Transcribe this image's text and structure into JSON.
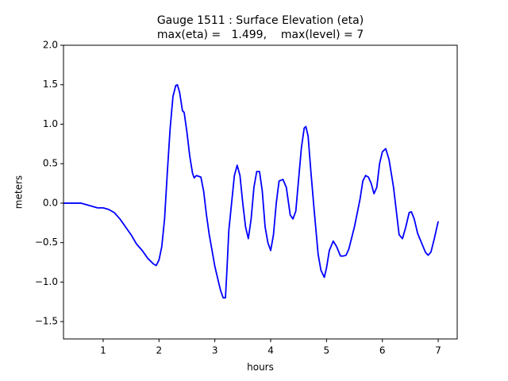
{
  "chart_data": {
    "type": "line",
    "title": "Gauge 1511 : Surface Elevation (eta)",
    "subtitle": "max(eta) =   1.499,    max(level) = 7",
    "xlabel": "hours",
    "ylabel": "meters",
    "xlim": [
      0.29,
      7.34
    ],
    "ylim": [
      -1.72,
      2.0
    ],
    "xticks": [
      1,
      2,
      3,
      4,
      5,
      6,
      7
    ],
    "yticks": [
      {
        "value": -1.5,
        "label": "−1.5"
      },
      {
        "value": -1.0,
        "label": "−1.0"
      },
      {
        "value": -0.5,
        "label": "−0.5"
      },
      {
        "value": 0.0,
        "label": "0.0"
      },
      {
        "value": 0.5,
        "label": "0.5"
      },
      {
        "value": 1.0,
        "label": "1.0"
      },
      {
        "value": 1.5,
        "label": "1.5"
      },
      {
        "value": 2.0,
        "label": "2.0"
      }
    ],
    "grid": false,
    "x": [
      0.29,
      0.5,
      0.6,
      0.7,
      0.8,
      0.9,
      1.0,
      1.05,
      1.1,
      1.2,
      1.3,
      1.4,
      1.5,
      1.6,
      1.7,
      1.8,
      1.9,
      1.95,
      2.0,
      2.05,
      2.1,
      2.15,
      2.2,
      2.25,
      2.3,
      2.33,
      2.37,
      2.42,
      2.45,
      2.5,
      2.55,
      2.6,
      2.63,
      2.67,
      2.75,
      2.8,
      2.85,
      2.9,
      3.0,
      3.1,
      3.15,
      3.19,
      3.22,
      3.25,
      3.3,
      3.35,
      3.4,
      3.45,
      3.5,
      3.55,
      3.6,
      3.65,
      3.7,
      3.75,
      3.8,
      3.85,
      3.9,
      3.95,
      4.0,
      4.05,
      4.1,
      4.15,
      4.22,
      4.28,
      4.35,
      4.4,
      4.45,
      4.5,
      4.55,
      4.6,
      4.63,
      4.67,
      4.72,
      4.78,
      4.85,
      4.9,
      4.96,
      5.0,
      5.05,
      5.12,
      5.18,
      5.25,
      5.3,
      5.35,
      5.4,
      5.5,
      5.6,
      5.65,
      5.7,
      5.75,
      5.8,
      5.85,
      5.9,
      5.95,
      6.0,
      6.06,
      6.12,
      6.2,
      6.25,
      6.3,
      6.36,
      6.42,
      6.48,
      6.52,
      6.57,
      6.63,
      6.7,
      6.77,
      6.82,
      6.87,
      6.93,
      7.0
    ],
    "series": [
      {
        "name": "eta",
        "color": "#0000ff",
        "values": [
          0,
          0,
          0,
          -0.02,
          -0.04,
          -0.06,
          -0.06,
          -0.07,
          -0.08,
          -0.12,
          -0.2,
          -0.3,
          -0.4,
          -0.52,
          -0.6,
          -0.7,
          -0.77,
          -0.79,
          -0.72,
          -0.55,
          -0.2,
          0.4,
          0.95,
          1.35,
          1.49,
          1.499,
          1.4,
          1.17,
          1.15,
          0.9,
          0.6,
          0.38,
          0.32,
          0.35,
          0.33,
          0.15,
          -0.15,
          -0.4,
          -0.8,
          -1.1,
          -1.2,
          -1.2,
          -0.8,
          -0.35,
          0.0,
          0.35,
          0.48,
          0.35,
          0.0,
          -0.3,
          -0.45,
          -0.2,
          0.2,
          0.4,
          0.4,
          0.15,
          -0.3,
          -0.5,
          -0.6,
          -0.4,
          0.0,
          0.28,
          0.3,
          0.2,
          -0.15,
          -0.2,
          -0.1,
          0.3,
          0.7,
          0.95,
          0.97,
          0.85,
          0.4,
          -0.1,
          -0.65,
          -0.85,
          -0.94,
          -0.82,
          -0.6,
          -0.48,
          -0.55,
          -0.67,
          -0.67,
          -0.66,
          -0.58,
          -0.3,
          0.05,
          0.28,
          0.35,
          0.33,
          0.25,
          0.12,
          0.2,
          0.5,
          0.65,
          0.69,
          0.55,
          0.2,
          -0.1,
          -0.4,
          -0.45,
          -0.3,
          -0.12,
          -0.11,
          -0.2,
          -0.38,
          -0.5,
          -0.62,
          -0.66,
          -0.62,
          -0.45,
          -0.23
        ]
      }
    ]
  }
}
